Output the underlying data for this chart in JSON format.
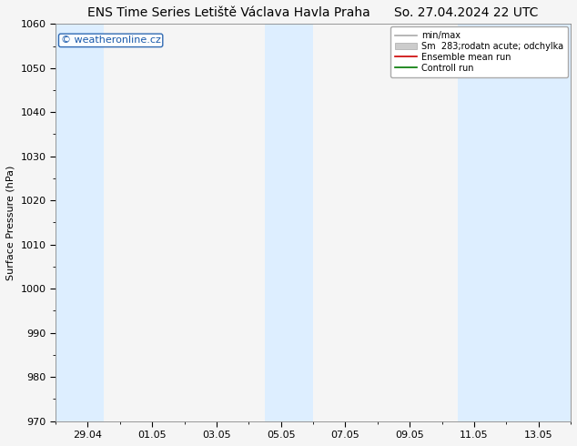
{
  "title_left": "ENS Time Series Letiště Václava Havla Praha",
  "title_right": "So. 27.04.2024 22 UTC",
  "ylabel": "Surface Pressure (hPa)",
  "ylim": [
    970,
    1060
  ],
  "yticks": [
    970,
    980,
    990,
    1000,
    1010,
    1020,
    1030,
    1040,
    1050,
    1060
  ],
  "x_tick_labels": [
    "29.04",
    "01.05",
    "03.05",
    "05.05",
    "07.05",
    "09.05",
    "11.05",
    "13.05"
  ],
  "x_tick_positions": [
    1,
    3,
    5,
    7,
    9,
    11,
    13,
    15
  ],
  "x_min": 0,
  "x_max": 16,
  "shaded_bands": [
    {
      "x_start": 0,
      "x_end": 1.5
    },
    {
      "x_start": 6.5,
      "x_end": 8.0
    },
    {
      "x_start": 12.5,
      "x_end": 16.0
    }
  ],
  "band_color": "#ddeeff",
  "bg_color": "#f5f5f5",
  "watermark": "© weatheronline.cz",
  "watermark_color": "#1a5aab",
  "title_fontsize": 10,
  "axis_fontsize": 8,
  "tick_fontsize": 8
}
